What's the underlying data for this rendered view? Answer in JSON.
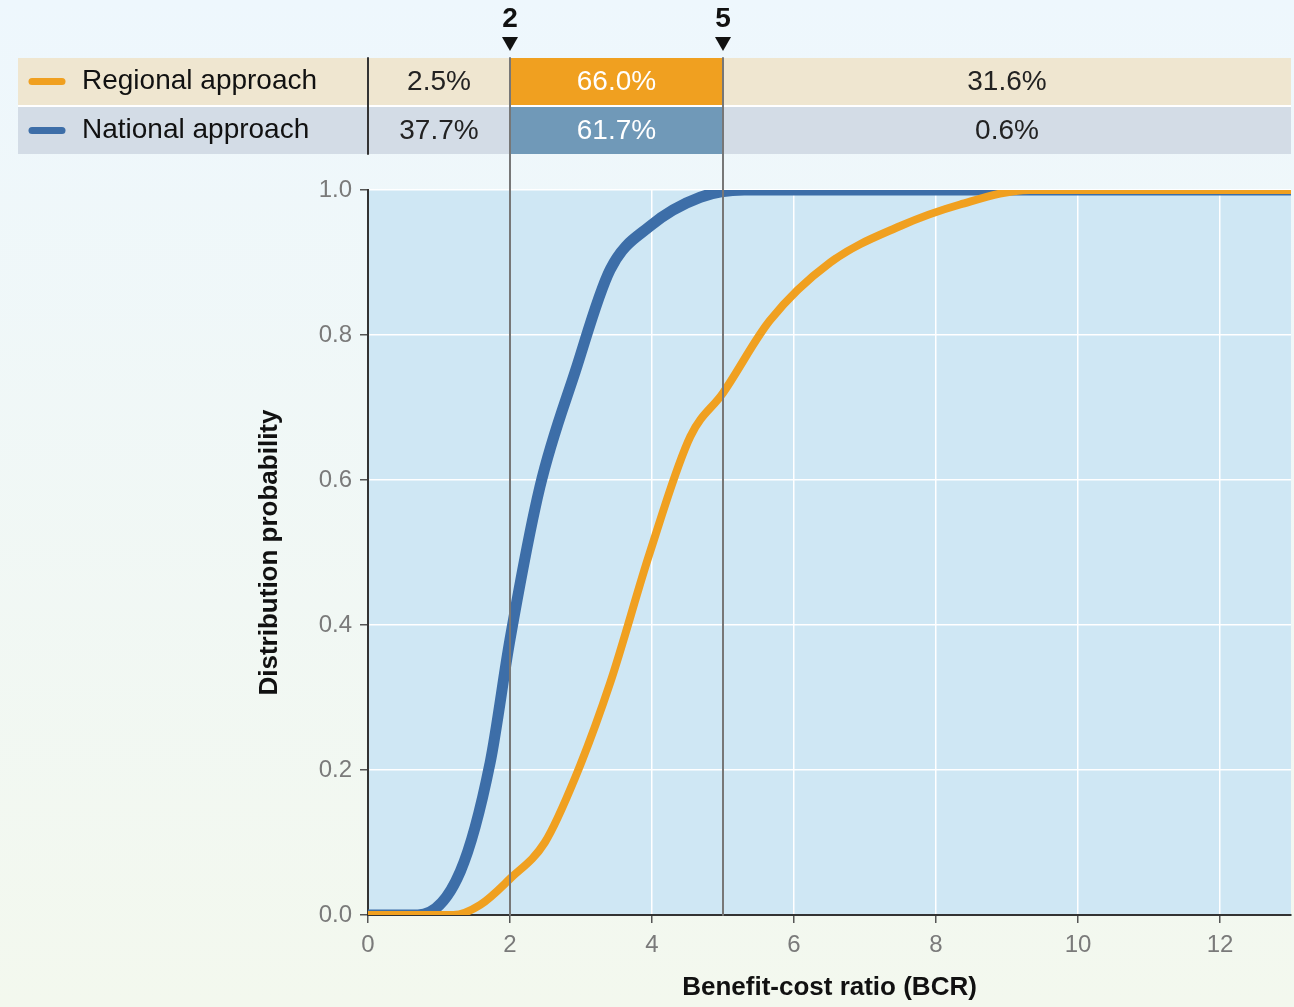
{
  "chart_data": {
    "type": "line",
    "xlabel": "Benefit-cost ratio (BCR)",
    "ylabel": "Distribution probability",
    "xlim": [
      0,
      13
    ],
    "xticks": [
      0,
      2,
      4,
      6,
      8,
      10,
      12
    ],
    "ylim": [
      0,
      1
    ],
    "yticks": [
      {
        "value": 0,
        "label": "0.0"
      },
      {
        "value": 0.2,
        "label": "0.2"
      },
      {
        "value": 0.4,
        "label": "0.4"
      },
      {
        "value": 0.6,
        "label": "0.6"
      },
      {
        "value": 0.8,
        "label": "0.8"
      },
      {
        "value": 1,
        "label": "1.0"
      }
    ],
    "grid": true,
    "legend": "top",
    "marker": "none",
    "line_style": "solid",
    "series": [
      {
        "name": "Regional approach",
        "color": "#f0a020",
        "x": [
          0,
          1.2,
          1.58,
          2.0,
          2.49,
          2.92,
          3.41,
          3.97,
          4.54,
          5.0,
          5.66,
          6.51,
          7.49,
          8.34,
          9.32,
          13
        ],
        "values": [
          0,
          0,
          0.014,
          0.05,
          0.1,
          0.19,
          0.32,
          0.5,
          0.66,
          0.72,
          0.82,
          0.9,
          0.95,
          0.98,
          1,
          1
        ]
      },
      {
        "name": "National approach",
        "color": "#3d6ea8",
        "x": [
          0,
          0.7,
          1.3,
          1.72,
          2.0,
          2.42,
          2.92,
          3.41,
          3.97,
          4.68,
          5.3,
          13
        ],
        "values": [
          0,
          0,
          0.06,
          0.21,
          0.38,
          0.59,
          0.75,
          0.89,
          0.95,
          0.99,
          1,
          1
        ]
      }
    ],
    "ref_lines": [
      {
        "axis": "x",
        "value": 2,
        "label": "2",
        "color": "#777777"
      },
      {
        "axis": "x",
        "value": 5,
        "label": "5",
        "color": "#777777"
      }
    ],
    "annotations": [
      "2.5%",
      "66.0%",
      "31.6%",
      "37.7%",
      "61.7%",
      "0.6%"
    ]
  }
}
